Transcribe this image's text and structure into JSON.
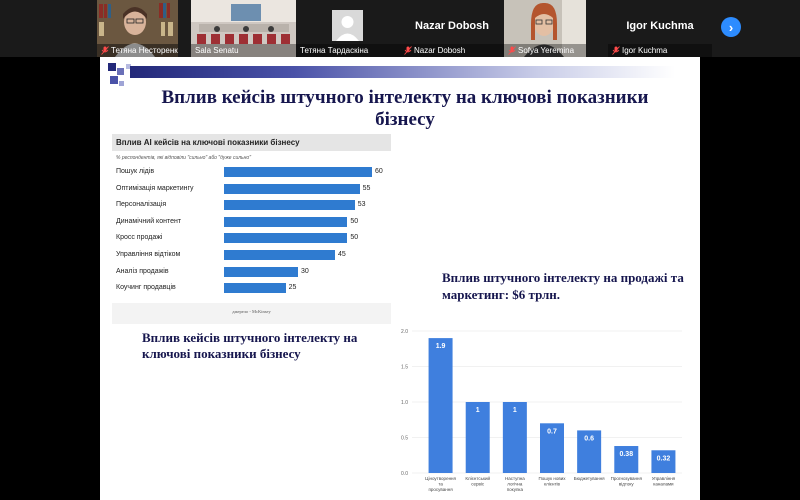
{
  "participants": [
    {
      "name": "Тетяна Несторенко",
      "display": "video",
      "muted": true
    },
    {
      "name": "Sala Senatu",
      "display": "video",
      "muted": false
    },
    {
      "name": "Тетяна Тардаскіна",
      "display": "avatar",
      "muted": false,
      "active": true
    },
    {
      "name": "Nazar Dobosh",
      "display": "name",
      "muted": true
    },
    {
      "name": "Sofya Yeremina",
      "display": "video",
      "muted": true
    },
    {
      "name": "Igor Kuchma",
      "display": "name",
      "muted": true
    }
  ],
  "next_button_icon": "chevron-right-icon",
  "slide": {
    "title": "Вплив кейсів штучного інтелекту на ключові показники бізнесу",
    "left_caption": "Вплив кейсів штучного інтелекту на ключові показники бізнесу",
    "right_caption": "Вплив штучного інтелекту на продажі та маркетинг: $6 трлн."
  },
  "colors": {
    "bar": "#2f7bd0",
    "vbar": "#3f7fde",
    "title": "#16164e",
    "active": "#2ad33a"
  },
  "chart_data": [
    {
      "type": "bar",
      "orientation": "horizontal",
      "title": "Вплив AI кейсів на ключові показники бізнесу",
      "subtitle": "% респондентів, які відповіли \"сильно\" або \"дуже сильно\"",
      "categories": [
        "Пошук лідів",
        "Оптимізація маркетингу",
        "Персоналізація",
        "Динамічний контент",
        "Кросс продажі",
        "Управління відтіком",
        "Аналіз продажів",
        "Коучинг продавців"
      ],
      "values": [
        60,
        55,
        53,
        50,
        50,
        45,
        30,
        25
      ],
      "source": "джерело - McKinsey",
      "xlim": [
        0,
        60
      ]
    },
    {
      "type": "bar",
      "orientation": "vertical",
      "categories": [
        "Ціноутворення та просування",
        "Клієнтський сервіс",
        "Наступна логічна покупка",
        "Пошук нових клієнтів",
        "Бюджетування",
        "Прогнозування відтоку",
        "Управління каналами"
      ],
      "values": [
        1.9,
        1,
        1,
        0.7,
        0.6,
        0.38,
        0.32
      ],
      "data_labels": [
        "1.9",
        "1",
        "1",
        "0.7",
        "0.6",
        "0.38",
        "0.32"
      ],
      "yticks": [
        "0.0",
        "0.5",
        "1.0",
        "1.5",
        "2.0"
      ],
      "ylim": [
        0,
        2.0
      ],
      "grid": true
    }
  ]
}
